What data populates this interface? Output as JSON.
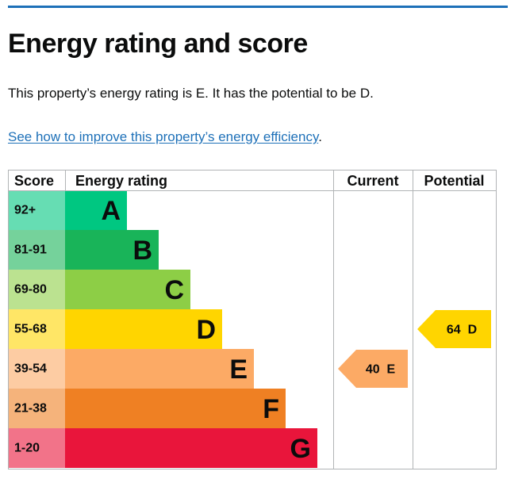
{
  "page": {
    "title": "Energy rating and score",
    "summary": "This property’s energy rating is E. It has the potential to be D.",
    "improve_link": "See how to improve this property’s energy efficiency",
    "improve_suffix": "."
  },
  "colors": {
    "top_rule": "#1d70b8",
    "link": "#1d70b8",
    "grid": "#b1b4b6"
  },
  "chart_data": {
    "type": "bar",
    "headers": {
      "score": "Score",
      "rating": "Energy rating",
      "current": "Current",
      "potential": "Potential"
    },
    "bands": [
      {
        "range": "92+",
        "letter": "A",
        "color": "#00c781",
        "score_bg": "#66ddb3"
      },
      {
        "range": "81-91",
        "letter": "B",
        "color": "#19b459",
        "score_bg": "#75d29b"
      },
      {
        "range": "69-80",
        "letter": "C",
        "color": "#8dce46",
        "score_bg": "#bbe290"
      },
      {
        "range": "55-68",
        "letter": "D",
        "color": "#ffd500",
        "score_bg": "#ffe666"
      },
      {
        "range": "39-54",
        "letter": "E",
        "color": "#fcaa65",
        "score_bg": "#fdcca3"
      },
      {
        "range": "21-38",
        "letter": "F",
        "color": "#ef8023",
        "score_bg": "#f5b37b"
      },
      {
        "range": "1-20",
        "letter": "G",
        "color": "#e9153b",
        "score_bg": "#f27389"
      }
    ],
    "current": {
      "score": 40,
      "letter": "E",
      "label": "40  E",
      "color": "#fcaa65"
    },
    "potential": {
      "score": 64,
      "letter": "D",
      "label": "64  D",
      "color": "#ffd500"
    }
  }
}
